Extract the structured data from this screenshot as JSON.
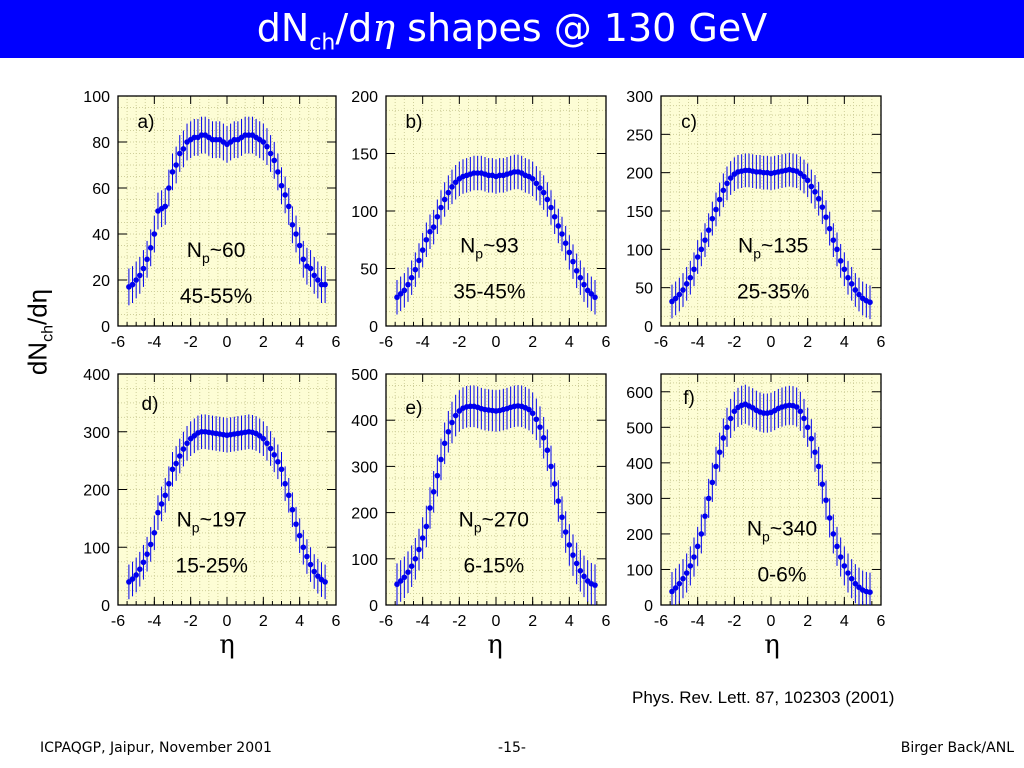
{
  "title": {
    "prefix": "dN",
    "sub": "ch",
    "slash": "/d",
    "eta": "η",
    "suffix": " shapes @ 130 GeV"
  },
  "y_axis_label": {
    "main": "dN",
    "sub": "ch",
    "rest": "/dη"
  },
  "x_axis_symbol": "η",
  "reference": "Phys. Rev. Lett. 87, 102303 (2001)",
  "footer": {
    "left": "ICPAQGP, Jaipur, November 2001",
    "center": "-15-",
    "right": "Birger Back/ANL"
  },
  "colors": {
    "title_bar": "#0000ff",
    "plot_bg": "#fdfdd5",
    "grid": "#cfcf9a",
    "data": "#0000ee"
  },
  "chart_data": [
    {
      "type": "scatter",
      "panel_label": "a)",
      "np_label": "60",
      "centrality": "45-55%",
      "xlim": [
        -6,
        6
      ],
      "ylim": [
        0,
        100
      ],
      "xticks": [
        -6,
        -4,
        -2,
        0,
        2,
        4,
        6
      ],
      "yticks": [
        0,
        20,
        40,
        60,
        80,
        100
      ],
      "x": [
        -5.4,
        -5.2,
        -5.0,
        -4.8,
        -4.6,
        -4.4,
        -4.2,
        -4.0,
        -3.8,
        -3.6,
        -3.4,
        -3.2,
        -3.0,
        -2.8,
        -2.6,
        -2.4,
        -2.2,
        -2.0,
        -1.8,
        -1.6,
        -1.4,
        -1.2,
        -1.0,
        -0.8,
        -0.6,
        -0.4,
        -0.2,
        0.0,
        0.2,
        0.4,
        0.6,
        0.8,
        1.0,
        1.2,
        1.4,
        1.6,
        1.8,
        2.0,
        2.2,
        2.4,
        2.6,
        2.8,
        3.0,
        3.2,
        3.4,
        3.6,
        3.8,
        4.0,
        4.2,
        4.4,
        4.6,
        4.8,
        5.0,
        5.2,
        5.4
      ],
      "y": [
        17,
        18,
        20,
        22,
        25,
        29,
        34,
        40,
        50,
        51,
        52,
        60,
        67,
        70,
        75,
        77,
        80,
        81,
        82,
        82,
        83,
        83,
        82,
        81,
        81,
        81,
        80,
        79,
        80,
        81,
        81,
        82,
        83,
        83,
        83,
        82,
        81,
        80,
        78,
        75,
        72,
        67,
        61,
        57,
        52,
        44,
        40,
        35,
        29,
        26,
        25,
        22,
        20,
        18,
        18
      ],
      "err": 8
    },
    {
      "type": "scatter",
      "panel_label": "b)",
      "np_label": "93",
      "centrality": "35-45%",
      "xlim": [
        -6,
        6
      ],
      "ylim": [
        0,
        200
      ],
      "xticks": [
        -6,
        -4,
        -2,
        0,
        2,
        4,
        6
      ],
      "yticks": [
        0,
        50,
        100,
        150,
        200
      ],
      "x": [
        -5.4,
        -5.2,
        -5.0,
        -4.8,
        -4.6,
        -4.4,
        -4.2,
        -4.0,
        -3.8,
        -3.6,
        -3.4,
        -3.2,
        -3.0,
        -2.8,
        -2.6,
        -2.4,
        -2.2,
        -2.0,
        -1.8,
        -1.6,
        -1.4,
        -1.2,
        -1.0,
        -0.8,
        -0.6,
        -0.4,
        -0.2,
        0.0,
        0.2,
        0.4,
        0.6,
        0.8,
        1.0,
        1.2,
        1.4,
        1.6,
        1.8,
        2.0,
        2.2,
        2.4,
        2.6,
        2.8,
        3.0,
        3.2,
        3.4,
        3.6,
        3.8,
        4.0,
        4.2,
        4.4,
        4.6,
        4.8,
        5.0,
        5.2,
        5.4
      ],
      "y": [
        25,
        28,
        31,
        36,
        42,
        49,
        57,
        66,
        75,
        82,
        86,
        95,
        103,
        110,
        116,
        121,
        125,
        128,
        130,
        131,
        132,
        133,
        133,
        133,
        132,
        131,
        131,
        130,
        131,
        131,
        132,
        133,
        134,
        134,
        133,
        131,
        130,
        128,
        124,
        120,
        116,
        110,
        103,
        95,
        87,
        80,
        72,
        64,
        56,
        48,
        42,
        36,
        31,
        28,
        25
      ],
      "err": 15
    },
    {
      "type": "scatter",
      "panel_label": "c)",
      "np_label": "135",
      "centrality": "25-35%",
      "xlim": [
        -6,
        6
      ],
      "ylim": [
        0,
        300
      ],
      "xticks": [
        -6,
        -4,
        -2,
        0,
        2,
        4,
        6
      ],
      "yticks": [
        0,
        50,
        100,
        150,
        200,
        250,
        300
      ],
      "x": [
        -5.4,
        -5.2,
        -5.0,
        -4.8,
        -4.6,
        -4.4,
        -4.2,
        -4.0,
        -3.8,
        -3.6,
        -3.4,
        -3.2,
        -3.0,
        -2.8,
        -2.6,
        -2.4,
        -2.2,
        -2.0,
        -1.8,
        -1.6,
        -1.4,
        -1.2,
        -1.0,
        -0.8,
        -0.6,
        -0.4,
        -0.2,
        0.0,
        0.2,
        0.4,
        0.6,
        0.8,
        1.0,
        1.2,
        1.4,
        1.6,
        1.8,
        2.0,
        2.2,
        2.4,
        2.6,
        2.8,
        3.0,
        3.2,
        3.4,
        3.6,
        3.8,
        4.0,
        4.2,
        4.4,
        4.6,
        4.8,
        5.0,
        5.2,
        5.4
      ],
      "y": [
        32,
        36,
        41,
        47,
        55,
        63,
        74,
        90,
        100,
        112,
        125,
        140,
        152,
        165,
        177,
        186,
        193,
        198,
        201,
        202,
        203,
        203,
        202,
        201,
        201,
        200,
        200,
        199,
        200,
        201,
        202,
        203,
        204,
        203,
        202,
        199,
        195,
        190,
        182,
        175,
        166,
        155,
        142,
        127,
        112,
        100,
        85,
        74,
        63,
        55,
        47,
        41,
        36,
        33,
        31
      ],
      "err": 22
    },
    {
      "type": "scatter",
      "panel_label": "d)",
      "np_label": "197",
      "centrality": "15-25%",
      "xlim": [
        -6,
        6
      ],
      "ylim": [
        0,
        400
      ],
      "xticks": [
        -6,
        -4,
        -2,
        0,
        2,
        4,
        6
      ],
      "yticks": [
        0,
        100,
        200,
        300,
        400
      ],
      "x": [
        -5.4,
        -5.2,
        -5.0,
        -4.8,
        -4.6,
        -4.4,
        -4.2,
        -4.0,
        -3.8,
        -3.6,
        -3.4,
        -3.2,
        -3.0,
        -2.8,
        -2.6,
        -2.4,
        -2.2,
        -2.0,
        -1.8,
        -1.6,
        -1.4,
        -1.2,
        -1.0,
        -0.8,
        -0.6,
        -0.4,
        -0.2,
        0.0,
        0.2,
        0.4,
        0.6,
        0.8,
        1.0,
        1.2,
        1.4,
        1.6,
        1.8,
        2.0,
        2.2,
        2.4,
        2.6,
        2.8,
        3.0,
        3.2,
        3.4,
        3.6,
        3.8,
        4.0,
        4.2,
        4.4,
        4.6,
        4.8,
        5.0,
        5.2,
        5.4
      ],
      "y": [
        40,
        45,
        52,
        62,
        74,
        88,
        105,
        125,
        160,
        175,
        190,
        210,
        235,
        245,
        258,
        270,
        280,
        288,
        293,
        298,
        300,
        300,
        299,
        298,
        297,
        296,
        295,
        294,
        295,
        296,
        297,
        298,
        299,
        300,
        299,
        297,
        293,
        288,
        280,
        271,
        260,
        248,
        235,
        210,
        190,
        165,
        140,
        120,
        100,
        84,
        70,
        58,
        50,
        44,
        40
      ],
      "err": 30
    },
    {
      "type": "scatter",
      "panel_label": "e)",
      "np_label": "270",
      "centrality": "6-15%",
      "xlim": [
        -6,
        6
      ],
      "ylim": [
        0,
        500
      ],
      "xticks": [
        -6,
        -4,
        -2,
        0,
        2,
        4,
        6
      ],
      "yticks": [
        0,
        100,
        200,
        300,
        400,
        500
      ],
      "x": [
        -5.4,
        -5.2,
        -5.0,
        -4.8,
        -4.6,
        -4.4,
        -4.2,
        -4.0,
        -3.8,
        -3.6,
        -3.4,
        -3.2,
        -3.0,
        -2.8,
        -2.6,
        -2.4,
        -2.2,
        -2.0,
        -1.8,
        -1.6,
        -1.4,
        -1.2,
        -1.0,
        -0.8,
        -0.6,
        -0.4,
        -0.2,
        0.0,
        0.2,
        0.4,
        0.6,
        0.8,
        1.0,
        1.2,
        1.4,
        1.6,
        1.8,
        2.0,
        2.2,
        2.4,
        2.6,
        2.8,
        3.0,
        3.2,
        3.4,
        3.6,
        3.8,
        4.0,
        4.2,
        4.4,
        4.6,
        4.8,
        5.0,
        5.2,
        5.4
      ],
      "y": [
        45,
        52,
        60,
        71,
        84,
        100,
        120,
        145,
        170,
        210,
        245,
        280,
        315,
        350,
        375,
        395,
        410,
        420,
        426,
        429,
        430,
        430,
        428,
        425,
        423,
        422,
        421,
        420,
        421,
        423,
        425,
        428,
        430,
        431,
        430,
        427,
        423,
        415,
        402,
        385,
        362,
        335,
        300,
        262,
        225,
        190,
        158,
        130,
        108,
        90,
        74,
        62,
        52,
        46,
        43
      ],
      "err": 45
    },
    {
      "type": "scatter",
      "panel_label": "f)",
      "np_label": "340",
      "centrality": "0-6%",
      "xlim": [
        -6,
        6
      ],
      "ylim": [
        0,
        650
      ],
      "xticks": [
        -6,
        -4,
        -2,
        0,
        2,
        4,
        6
      ],
      "yticks": [
        0,
        100,
        200,
        300,
        400,
        500,
        600
      ],
      "x": [
        -5.4,
        -5.2,
        -5.0,
        -4.8,
        -4.6,
        -4.4,
        -4.2,
        -4.0,
        -3.8,
        -3.6,
        -3.4,
        -3.2,
        -3.0,
        -2.8,
        -2.6,
        -2.4,
        -2.2,
        -2.0,
        -1.8,
        -1.6,
        -1.4,
        -1.2,
        -1.0,
        -0.8,
        -0.6,
        -0.4,
        -0.2,
        0.0,
        0.2,
        0.4,
        0.6,
        0.8,
        1.0,
        1.2,
        1.4,
        1.6,
        1.8,
        2.0,
        2.2,
        2.4,
        2.6,
        2.8,
        3.0,
        3.2,
        3.4,
        3.6,
        3.8,
        4.0,
        4.2,
        4.4,
        4.6,
        4.8,
        5.0,
        5.2,
        5.4
      ],
      "y": [
        38,
        48,
        60,
        74,
        90,
        110,
        135,
        165,
        200,
        250,
        300,
        345,
        390,
        430,
        470,
        500,
        525,
        545,
        556,
        562,
        565,
        560,
        555,
        548,
        543,
        540,
        540,
        542,
        547,
        553,
        557,
        560,
        562,
        561,
        557,
        545,
        525,
        500,
        468,
        430,
        390,
        340,
        295,
        245,
        200,
        165,
        135,
        110,
        90,
        74,
        60,
        50,
        42,
        38,
        36
      ],
      "err": 55
    }
  ]
}
